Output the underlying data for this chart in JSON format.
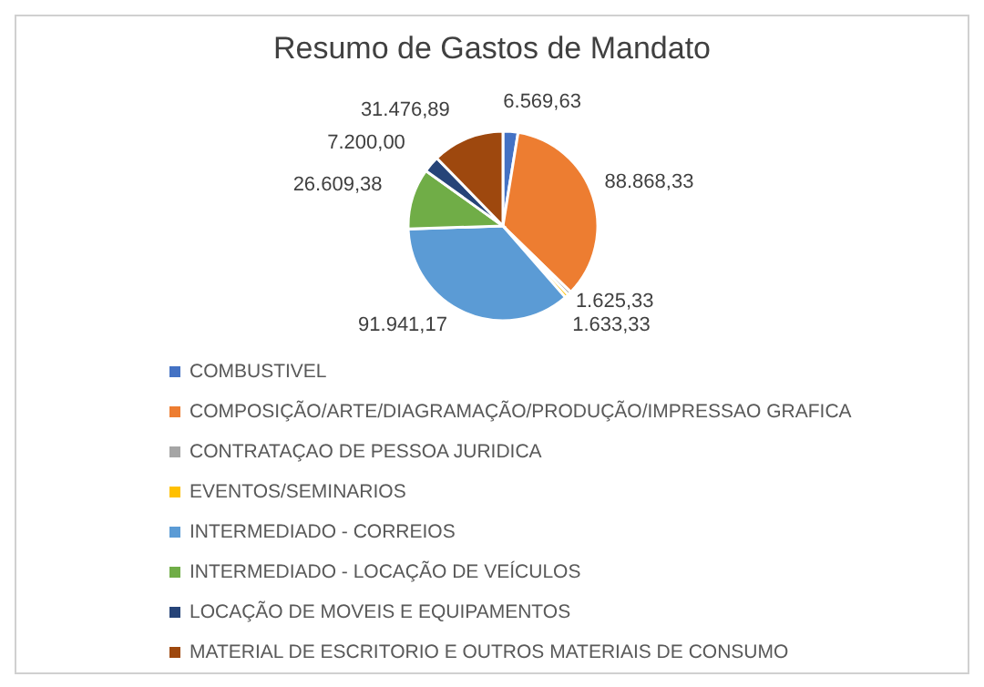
{
  "chart_data": {
    "type": "pie",
    "title": "Resumo de Gastos de Mandato",
    "categories": [
      "COMBUSTIVEL",
      "COMPOSIÇÃO/ARTE/DIAGRAMAÇÃO/PRODUÇÃO/IMPRESSAO GRAFICA",
      "CONTRATAÇAO DE PESSOA JURIDICA",
      "EVENTOS/SEMINARIOS",
      "INTERMEDIADO - CORREIOS",
      "INTERMEDIADO - LOCAÇÃO DE VEÍCULOS",
      "LOCAÇÃO DE MOVEIS E EQUIPAMENTOS",
      "MATERIAL DE ESCRITORIO E OUTROS MATERIAIS DE CONSUMO"
    ],
    "values": [
      6569.63,
      88868.33,
      1625.33,
      1633.33,
      91941.17,
      26609.38,
      7200.0,
      31476.89
    ],
    "value_labels": [
      "6.569,63",
      "88.868,33",
      "1.625,33",
      "1.633,33",
      "91.941,17",
      "26.609,38",
      "7.200,00",
      "31.476,89"
    ],
    "colors": [
      "#4472c4",
      "#ed7d31",
      "#a5a5a5",
      "#ffc000",
      "#5b9bd5",
      "#70ad47",
      "#264478",
      "#9e480e"
    ],
    "legend": "bottom"
  }
}
